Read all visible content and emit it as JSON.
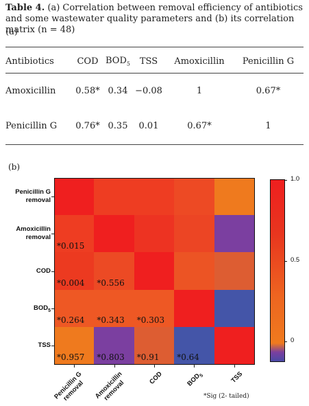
{
  "caption": {
    "label": "Table 4.",
    "text": " (a) Correlation between removal efficiency of antibiotics and some wastewater quality parameters  and (b) its correlation matrix  (n = 48)"
  },
  "part_a_label": "(a)",
  "part_b_label": "(b)",
  "table": {
    "headers": [
      "Antibiotics",
      "COD",
      "BOD",
      "TSS",
      "Amoxicillin",
      "Penicillin G"
    ],
    "bod_subscript": "5",
    "rows": [
      [
        "Amoxicillin",
        "0.58*",
        "0.34",
        "−0.08",
        "1",
        "0.67*"
      ],
      [
        "Penicillin G",
        "0.76*",
        "0.35",
        "0.01",
        "0.67*",
        "1"
      ]
    ]
  },
  "heatmap": {
    "row_labels": [
      [
        "Penicillin G",
        "removal"
      ],
      [
        "Amoxicillin",
        "removal"
      ],
      [
        "COD",
        ""
      ],
      [
        "BOD",
        ""
      ],
      [
        "TSS",
        ""
      ]
    ],
    "col_labels": [
      [
        "Penicillin G",
        "removal"
      ],
      [
        "Amoxicillin",
        "removal"
      ],
      [
        "COD",
        ""
      ],
      [
        "BOD",
        ""
      ],
      [
        "TSS",
        ""
      ]
    ],
    "bod_subscript": "5",
    "colors": [
      [
        "#ef1f1f",
        "#ee3d22",
        "#ee3d22",
        "#ed4a24",
        "#ef7a1e"
      ],
      [
        "#ee3d22",
        "#ef1f1f",
        "#ed3322",
        "#ec4524",
        "#7b3fa0"
      ],
      [
        "#ec3a20",
        "#ec4a24",
        "#ef1f1f",
        "#ec5424",
        "#dd5d32"
      ],
      [
        "#ee5824",
        "#ee5824",
        "#ee5824",
        "#ef1f1f",
        "#4455a8"
      ],
      [
        "#ef7a1e",
        "#7b3fa0",
        "#dd5d32",
        "#4455a8",
        "#ef1f1f"
      ]
    ],
    "cell_labels": [
      [
        "",
        "",
        "",
        "",
        ""
      ],
      [
        "*0.015",
        "",
        "",
        "",
        ""
      ],
      [
        "*0.004",
        "*0.556",
        "",
        "",
        ""
      ],
      [
        "*0.264",
        "*0.343",
        "*0.303",
        "",
        ""
      ],
      [
        "*0.957",
        "*0.803",
        "*0.91",
        "*0.64",
        ""
      ]
    ]
  },
  "colorbar": {
    "ticks": [
      "1.0",
      "0.5",
      "0"
    ]
  },
  "footnote": "*Sig (2- tailed)"
}
